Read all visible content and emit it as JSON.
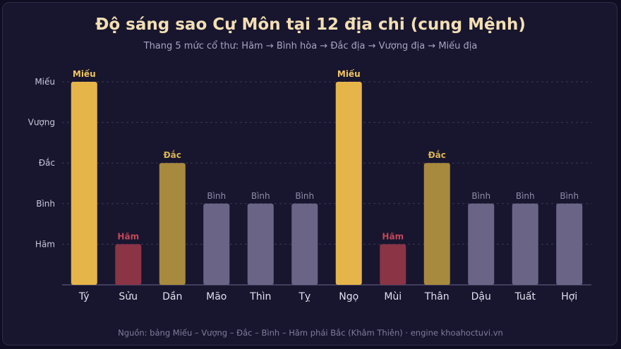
{
  "title": "Độ sáng sao Cự Môn tại 12 địa chi (cung Mệnh)",
  "subtitle": "Thang 5 mức cổ thư: Hãm → Bình hòa → Đắc địa → Vượng địa → Miếu địa",
  "footer": "Nguồn: bảng Miếu – Vượng – Đắc – Bình – Hãm phái Bắc (Khâm Thiên) · engine khoahoctuvi.vn",
  "chart_data": {
    "type": "bar",
    "categories": [
      "Tý",
      "Sửu",
      "Dần",
      "Mão",
      "Thìn",
      "Tỵ",
      "Ngọ",
      "Mùi",
      "Thân",
      "Dậu",
      "Tuất",
      "Hợi"
    ],
    "levels": [
      "Hãm",
      "Bình",
      "Đắc",
      "Vượng",
      "Miếu"
    ],
    "values": [
      5,
      1,
      3,
      2,
      2,
      2,
      5,
      1,
      3,
      2,
      2,
      2
    ],
    "data_labels": [
      "Miếu",
      "Hãm",
      "Đắc",
      "Bình",
      "Bình",
      "Bình",
      "Miếu",
      "Hãm",
      "Đắc",
      "Bình",
      "Bình",
      "Bình"
    ],
    "ylim": [
      0,
      5
    ],
    "grid": true,
    "colors": {
      "Miếu": "#e6b54a",
      "Đắc": "#a88a3e",
      "Bình": "#6a6587",
      "Hãm": "#8a3446"
    },
    "label_colors": {
      "Miếu": "#f0c460",
      "Đắc": "#d9b256",
      "Bình": "#8f8ba8",
      "Hãm": "#c2485a"
    },
    "xlabel": "",
    "ylabel": ""
  }
}
